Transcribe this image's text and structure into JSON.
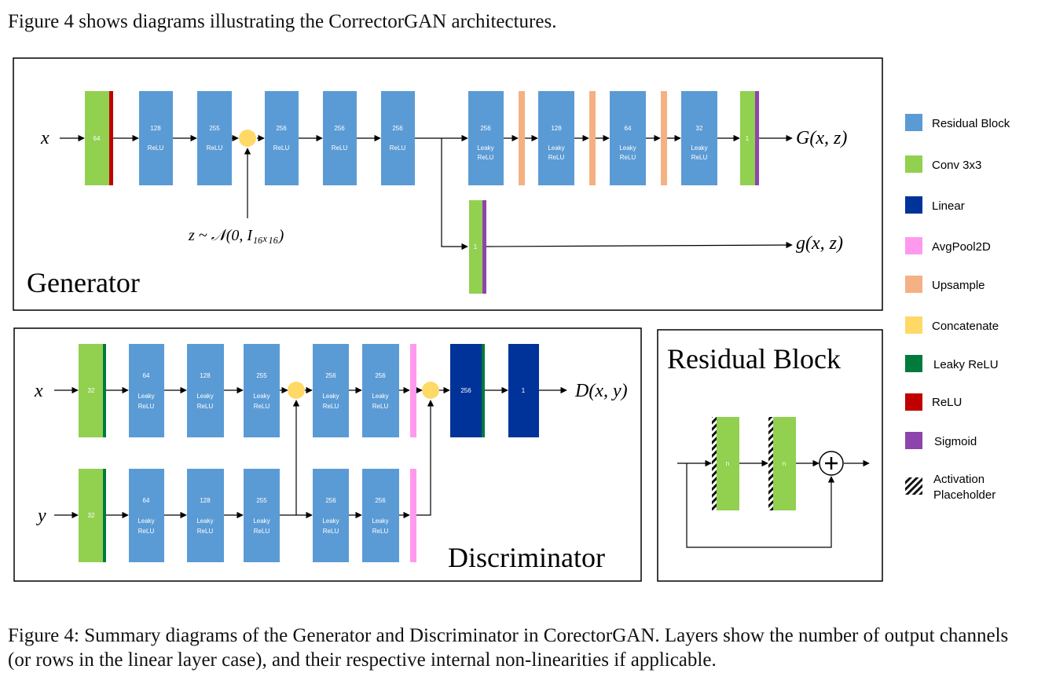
{
  "intro_text": "Figure 4 shows diagrams illustrating the CorrectorGAN architectures.",
  "caption": "Figure 4: Summary diagrams of the Generator and Discriminator in CorectorGAN. Layers show the number of output channels (or rows in the linear layer case), and their respective internal non-linearities if applicable.",
  "colors": {
    "residual": "#5b9bd5",
    "conv": "#92d050",
    "linear": "#003399",
    "avgpool": "#ff99ee",
    "upsample": "#f4b183",
    "concat": "#ffd966",
    "leaky_relu": "#007a3d",
    "relu": "#c00000",
    "sigmoid": "#8e44ad"
  },
  "generator": {
    "title": "Generator",
    "input_label": "x",
    "noise_label": "z ~ 𝒩(0, I₁₆ₓ₁₆)",
    "output_main": "G(x, z)",
    "output_aux": "g(x, z)",
    "blocks": [
      {
        "num": "64"
      },
      {
        "num": "128",
        "act": "ReLU"
      },
      {
        "num": "255",
        "act": "ReLU"
      },
      {
        "num": "256",
        "act": "ReLU"
      },
      {
        "num": "256",
        "act": "ReLU"
      },
      {
        "num": "256",
        "act": "ReLU"
      },
      {
        "num": "256",
        "act": "Leaky ReLU"
      },
      {
        "num": "128",
        "act": "Leaky ReLU"
      },
      {
        "num": "64",
        "act": "Leaky ReLU"
      },
      {
        "num": "32",
        "act": "Leaky ReLU"
      },
      {
        "num": "1"
      },
      {
        "num": "1"
      }
    ]
  },
  "discriminator": {
    "title": "Discriminator",
    "input_x": "x",
    "input_y": "y",
    "output": "D(x, y)",
    "top_blocks": [
      {
        "num": "32"
      },
      {
        "num": "64",
        "act": "Leaky ReLU"
      },
      {
        "num": "128",
        "act": "Leaky ReLU"
      },
      {
        "num": "255",
        "act": "Leaky ReLU"
      },
      {
        "num": "256",
        "act": "Leaky ReLU"
      },
      {
        "num": "256",
        "act": "Leaky ReLU"
      },
      {
        "num": "256"
      },
      {
        "num": "1"
      }
    ],
    "bottom_blocks": [
      {
        "num": "32"
      },
      {
        "num": "64",
        "act": "Leaky ReLU"
      },
      {
        "num": "128",
        "act": "Leaky ReLU"
      },
      {
        "num": "255",
        "act": "Leaky ReLU"
      },
      {
        "num": "256",
        "act": "Leaky ReLU"
      },
      {
        "num": "256",
        "act": "Leaky ReLU"
      }
    ]
  },
  "residual_block": {
    "title": "Residual Block",
    "block_label": "n"
  },
  "legend": [
    {
      "label": "Residual Block",
      "color": "#5b9bd5"
    },
    {
      "label": "Conv 3x3",
      "color": "#92d050"
    },
    {
      "label": "Linear",
      "color": "#003399"
    },
    {
      "label": "AvgPool2D",
      "color": "#ff99ee"
    },
    {
      "label": "Upsample",
      "color": "#f4b183"
    },
    {
      "label": "Concatenate",
      "color": "#ffd966"
    },
    {
      "label": "Leaky ReLU",
      "color": "#007a3d"
    },
    {
      "label": "ReLU",
      "color": "#c00000"
    },
    {
      "label": "Sigmoid",
      "color": "#8e44ad"
    },
    {
      "label": "Activation Placeholder",
      "color": "hatched"
    }
  ]
}
